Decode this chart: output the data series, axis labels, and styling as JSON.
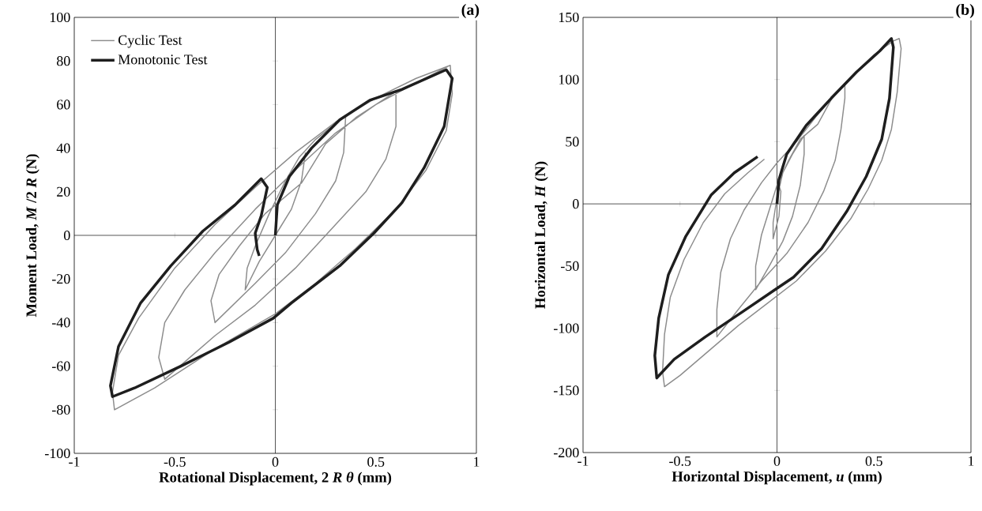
{
  "chart_data": [
    {
      "type": "line",
      "title": "(a)",
      "xlabel": "Rotational Displacement, 2 *R θ* (mm)",
      "ylabel": "Moment Load, *M* /2 *R* (N)",
      "xlim": [
        -1,
        1
      ],
      "xticks": [
        -1,
        -0.5,
        0,
        0.5,
        1
      ],
      "ylim": [
        -100,
        100
      ],
      "yticks": [
        -100,
        -80,
        -60,
        -40,
        -20,
        0,
        20,
        40,
        60,
        80,
        100
      ],
      "legend": "top left",
      "series": [
        {
          "name": "Cyclic Test",
          "color": "#8c8c8c",
          "x": [
            0.15,
            0.13,
            0.08,
            0,
            -0.08,
            -0.15,
            -0.14,
            -0.1,
            -0.03,
            0.05,
            0.12,
            0.2,
            0.35,
            0.34,
            0.3,
            0.2,
            0.05,
            -0.1,
            -0.3,
            -0.32,
            -0.28,
            -0.18,
            -0.05,
            0.13,
            0.25,
            0.4,
            0.6,
            0.6,
            0.55,
            0.45,
            0.3,
            0.1,
            -0.1,
            -0.3,
            -0.55,
            -0.58,
            -0.55,
            -0.45,
            -0.3,
            -0.1,
            0.1,
            0.3,
            0.5,
            0.7,
            0.87,
            0.88,
            0.85,
            0.75,
            0.6,
            0.4,
            0.2,
            0,
            -0.3,
            -0.6,
            -0.8,
            -0.81,
            -0.78,
            -0.68,
            -0.5,
            -0.3,
            -0.1,
            0.1,
            0.3,
            0.5,
            0.7,
            0.87
          ],
          "values": [
            38,
            25,
            12,
            0,
            -12,
            -25,
            -15,
            -5,
            10,
            25,
            36,
            44,
            55,
            38,
            25,
            10,
            -8,
            -22,
            -40,
            -30,
            -18,
            -5,
            10,
            24,
            42,
            54,
            66,
            50,
            35,
            20,
            5,
            -15,
            -32,
            -46,
            -66,
            -56,
            -40,
            -25,
            -8,
            12,
            30,
            47,
            60,
            70,
            78,
            65,
            48,
            30,
            12,
            -6,
            -22,
            -36,
            -52,
            -70,
            -80,
            -72,
            -55,
            -38,
            -15,
            5,
            22,
            38,
            52,
            63,
            72,
            78
          ]
        },
        {
          "name": "Monotonic Test",
          "color": "#1e1e1e",
          "x": [
            0,
            0.01,
            0.07,
            0.18,
            0.32,
            0.47,
            0.63,
            0.85,
            0.88,
            0.84,
            0.74,
            0.63,
            0.49,
            0.32,
            0.08,
            -0.01,
            -0.23,
            -0.47,
            -0.7,
            -0.81,
            -0.82,
            -0.78,
            -0.67,
            -0.52,
            -0.36,
            -0.2,
            -0.07,
            -0.04,
            -0.07,
            -0.1,
            -0.09,
            -0.08
          ],
          "values": [
            0,
            14,
            27,
            40,
            53,
            62,
            67,
            76,
            72,
            50,
            31,
            15,
            1,
            -14,
            -31,
            -38,
            -49,
            -60,
            -70,
            -74,
            -69,
            -51,
            -31,
            -14,
            2,
            14,
            26,
            22,
            9,
            1,
            -6.5,
            -9.4
          ]
        }
      ]
    },
    {
      "type": "line",
      "title": "(b)",
      "xlabel": "Horizontal Displacement, *u* (mm)",
      "ylabel": "Horizontal Load, *H* (N)",
      "xlim": [
        -1,
        1
      ],
      "xticks": [
        -1,
        -0.5,
        0,
        0.5,
        1
      ],
      "ylim": [
        -200,
        150
      ],
      "yticks": [
        -200,
        -150,
        -100,
        -50,
        0,
        50,
        100,
        150
      ],
      "series": [
        {
          "color": "#8c8c8c",
          "x": [
            0,
            0.01,
            0.02,
            0.01,
            -0.02,
            -0.02,
            0,
            0.03,
            0.08,
            0.14,
            0.14,
            0.12,
            0.08,
            0.03,
            -0.04,
            -0.11,
            -0.11,
            -0.08,
            -0.04,
            0,
            0.06,
            0.12,
            0.21,
            0.28,
            0.35,
            0.35,
            0.33,
            0.3,
            0.24,
            0.16,
            0.05,
            -0.08,
            -0.2,
            -0.31,
            -0.31,
            -0.29,
            -0.24,
            -0.17,
            -0.08,
            0,
            0.1,
            0.2,
            0.3,
            0.4,
            0.5,
            0.6,
            0.63,
            0.64,
            0.62,
            0.59,
            0.54,
            0.47,
            0.38,
            0.25,
            0.1,
            -0.05,
            -0.2,
            -0.35,
            -0.5,
            -0.58,
            -0.59,
            -0.58,
            -0.55,
            -0.48,
            -0.38,
            -0.27,
            -0.15,
            -0.065
          ],
          "values": [
            0,
            15,
            10,
            -10,
            -28,
            -15,
            5,
            25,
            40,
            55,
            40,
            15,
            -10,
            -30,
            -50,
            -69,
            -50,
            -25,
            -5,
            15,
            35,
            52,
            64,
            84,
            97,
            85,
            60,
            35,
            10,
            -15,
            -40,
            -62,
            -85,
            -107,
            -85,
            -55,
            -28,
            -5,
            17,
            33,
            50,
            70,
            88,
            105,
            120,
            131,
            133,
            125,
            90,
            60,
            35,
            12,
            -12,
            -38,
            -62,
            -80,
            -98,
            -118,
            -138,
            -147,
            -135,
            -105,
            -75,
            -45,
            -15,
            8,
            25,
            36
          ]
        },
        {
          "color": "#1e1e1e",
          "x": [
            0,
            0.01,
            0.05,
            0.15,
            0.28,
            0.41,
            0.53,
            0.59,
            0.6,
            0.58,
            0.54,
            0.46,
            0.36,
            0.23,
            0.085,
            -0.01,
            -0.18,
            -0.37,
            -0.53,
            -0.62,
            -0.63,
            -0.61,
            -0.56,
            -0.47,
            -0.34,
            -0.22,
            -0.1
          ],
          "values": [
            0,
            19.5,
            40,
            63,
            85,
            106,
            123,
            133,
            126,
            85,
            52,
            22,
            -6,
            -36,
            -59,
            -69,
            -87,
            -107,
            -125,
            -140,
            -122,
            -92,
            -57,
            -26,
            7,
            25,
            38
          ]
        }
      ]
    }
  ]
}
